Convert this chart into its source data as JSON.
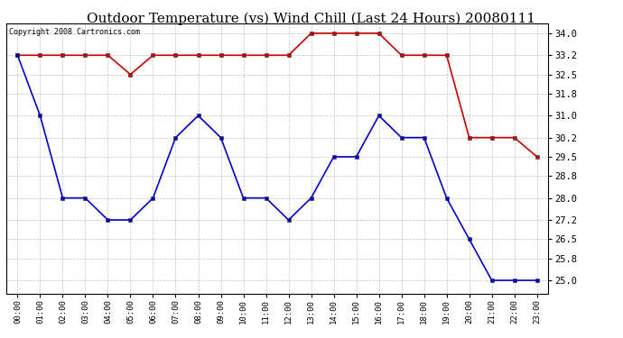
{
  "title": "Outdoor Temperature (vs) Wind Chill (Last 24 Hours) 20080111",
  "copyright": "Copyright 2008 Cartronics.com",
  "hours": [
    "00:00",
    "01:00",
    "02:00",
    "03:00",
    "04:00",
    "05:00",
    "06:00",
    "07:00",
    "08:00",
    "09:00",
    "10:00",
    "11:00",
    "12:00",
    "13:00",
    "14:00",
    "15:00",
    "16:00",
    "17:00",
    "18:00",
    "19:00",
    "20:00",
    "21:00",
    "22:00",
    "23:00"
  ],
  "temp": [
    33.2,
    33.2,
    33.2,
    33.2,
    33.2,
    32.5,
    33.2,
    33.2,
    33.2,
    33.2,
    33.2,
    33.2,
    33.2,
    34.0,
    34.0,
    34.0,
    34.0,
    33.2,
    33.2,
    33.2,
    30.2,
    30.2,
    30.2,
    29.5
  ],
  "windchill": [
    33.2,
    31.0,
    28.0,
    28.0,
    27.2,
    27.2,
    28.0,
    30.2,
    31.0,
    30.2,
    28.0,
    28.0,
    27.2,
    28.0,
    29.5,
    29.5,
    31.0,
    30.2,
    30.2,
    28.0,
    26.5,
    25.0,
    25.0,
    25.0
  ],
  "temp_color": "#cc0000",
  "windchill_color": "#0000cc",
  "bg_color": "#ffffff",
  "grid_color": "#aaaaaa",
  "yticks": [
    25.0,
    25.8,
    26.5,
    27.2,
    28.0,
    28.8,
    29.5,
    30.2,
    31.0,
    31.8,
    32.5,
    33.2,
    34.0
  ],
  "ylim": [
    24.5,
    34.35
  ],
  "marker": "s",
  "markersize": 3,
  "linewidth": 1.2
}
